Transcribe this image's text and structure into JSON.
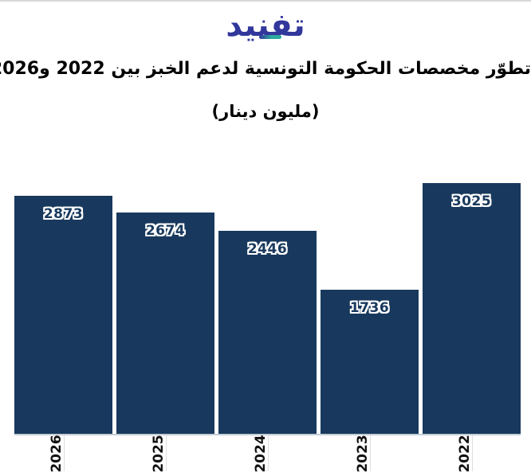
{
  "page": {
    "logo_text": "تفنيد",
    "title": "تطوّر مخصصات الحكومة التونسية لدعم الخبز بين 2022 و2026",
    "subtitle": "(مليون دينار)"
  },
  "colors": {
    "bar": "#18395D",
    "value_label": "#18395D",
    "value_label_outline": "#FFFFFF",
    "logo_blue": "#31379B",
    "logo_teal": "#2BA99E",
    "axis_line": "#C3CCD5",
    "tick_line": "#DBDEE2",
    "top_border": "#D9D9D9",
    "text": "#111111"
  },
  "chart_data": {
    "type": "bar",
    "title": "تطوّر مخصصات الحكومة التونسية لدعم الخبز بين 2022 و2026",
    "subtitle": "(مليون دينار)",
    "categories": [
      "2026",
      "2025",
      "2024",
      "2023",
      "2022"
    ],
    "values": [
      2873,
      2674,
      2446,
      1736,
      3025
    ],
    "xlabel": "",
    "ylabel": "",
    "ylim": [
      0,
      3025
    ],
    "unit": "مليون دينار",
    "grid": "off",
    "legend": "none",
    "value_labels_shown": true,
    "x_tick_rotation": 90,
    "bar_order_note": "years displayed right-to-left: 2022 rightmost"
  }
}
